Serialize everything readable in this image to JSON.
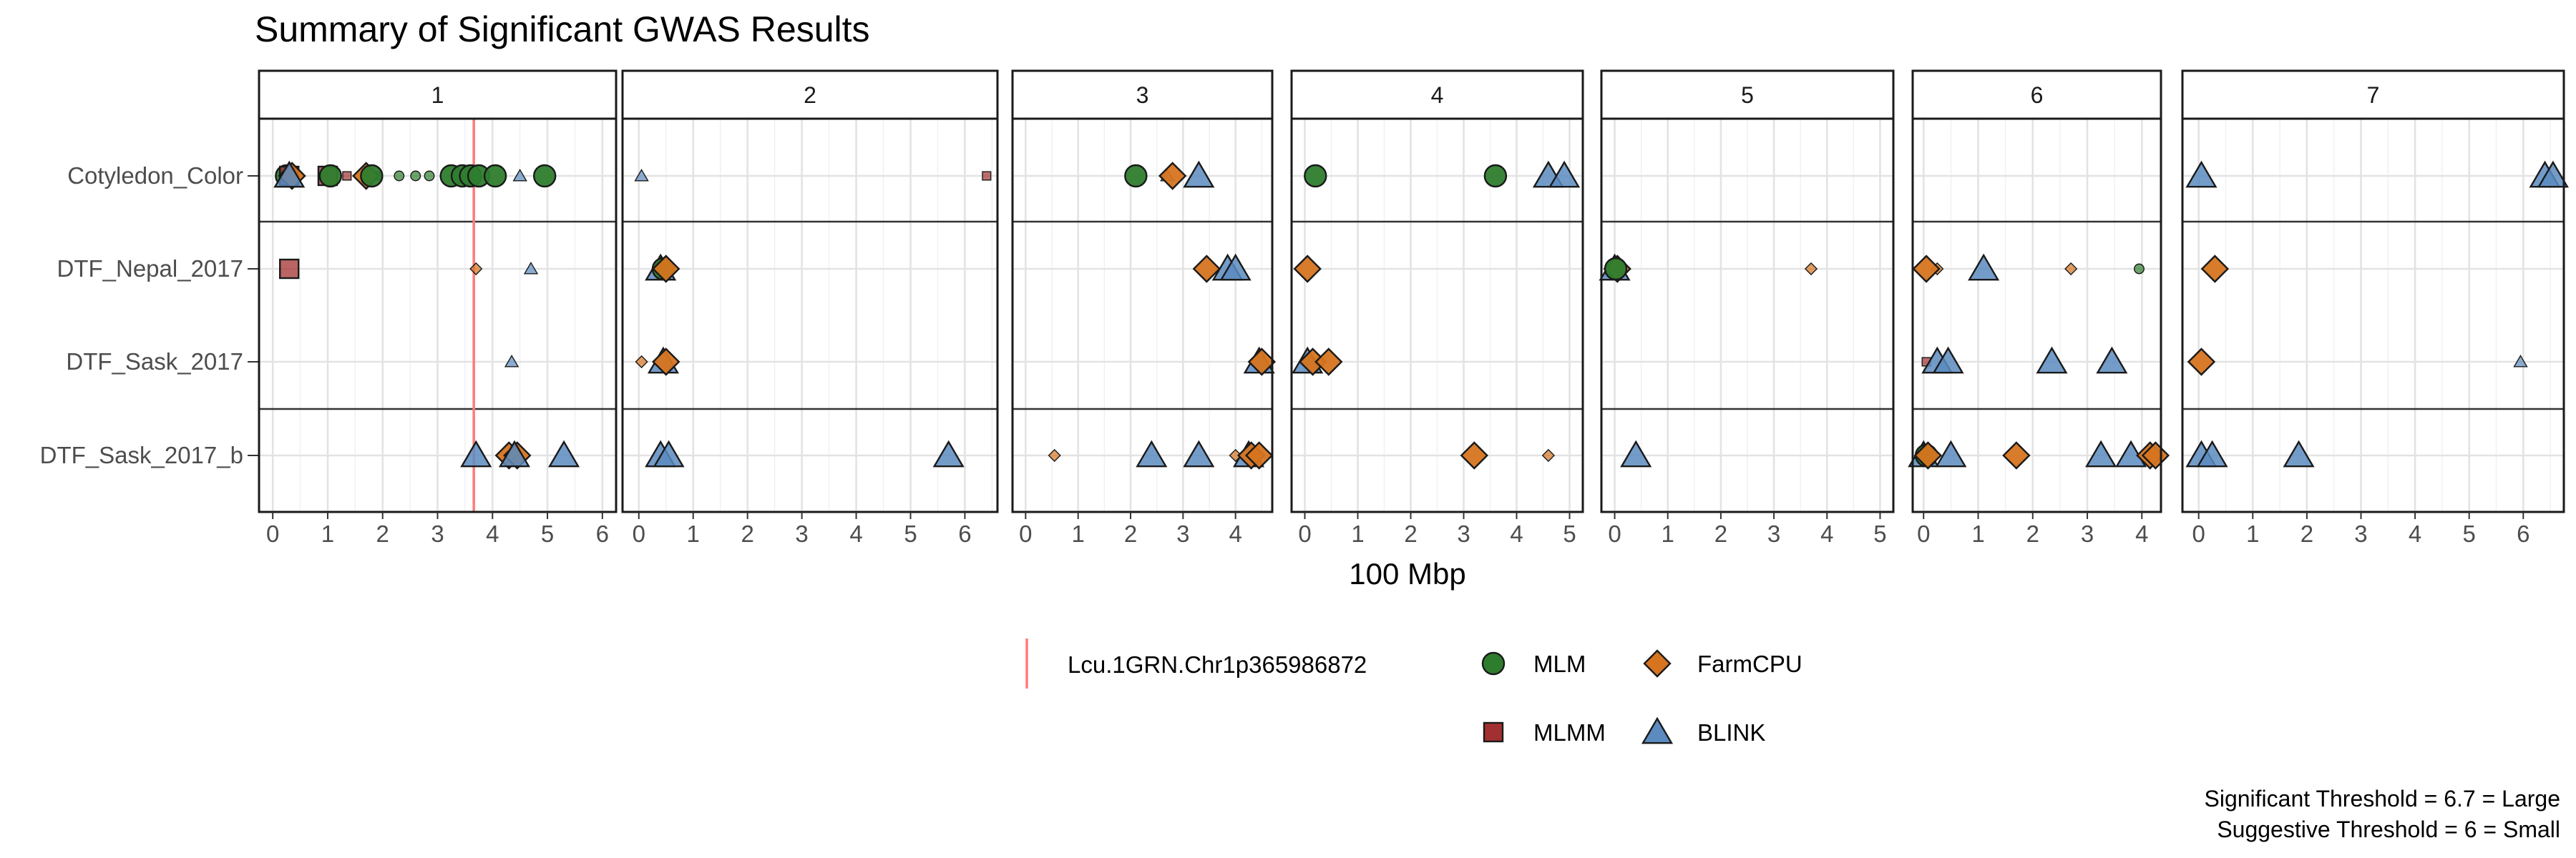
{
  "chart_data": {
    "type": "scatter",
    "title": "Summary of Significant GWAS Results",
    "xlabel": "100 Mbp",
    "ylabel": "",
    "rows": [
      "Cotyledon_Color",
      "DTF_Nepal_2017",
      "DTF_Sask_2017",
      "DTF_Sask_2017_b"
    ],
    "panels": [
      {
        "label": "1",
        "xlim": [
          -0.25,
          6.25
        ],
        "ticks": [
          "0",
          "1",
          "2",
          "3",
          "4",
          "5",
          "6"
        ],
        "points": [
          {
            "x": 0.25,
            "row": 0,
            "model": "MLM",
            "size": "large"
          },
          {
            "x": 0.3,
            "row": 0,
            "model": "MLMM",
            "size": "large"
          },
          {
            "x": 0.35,
            "row": 0,
            "model": "FarmCPU",
            "size": "large"
          },
          {
            "x": 0.3,
            "row": 0,
            "model": "BLINK",
            "size": "large"
          },
          {
            "x": 1.0,
            "row": 0,
            "model": "MLMM",
            "size": "large"
          },
          {
            "x": 1.05,
            "row": 0,
            "model": "MLM",
            "size": "large"
          },
          {
            "x": 1.35,
            "row": 0,
            "model": "MLMM",
            "size": "small"
          },
          {
            "x": 1.7,
            "row": 0,
            "model": "FarmCPU",
            "size": "large"
          },
          {
            "x": 1.8,
            "row": 0,
            "model": "MLM",
            "size": "large"
          },
          {
            "x": 1.9,
            "row": 0,
            "model": "MLMM",
            "size": "small"
          },
          {
            "x": 2.3,
            "row": 0,
            "model": "MLM",
            "size": "small"
          },
          {
            "x": 2.6,
            "row": 0,
            "model": "MLM",
            "size": "small"
          },
          {
            "x": 2.85,
            "row": 0,
            "model": "MLM",
            "size": "small"
          },
          {
            "x": 3.25,
            "row": 0,
            "model": "MLM",
            "size": "large"
          },
          {
            "x": 3.45,
            "row": 0,
            "model": "MLM",
            "size": "large"
          },
          {
            "x": 3.6,
            "row": 0,
            "model": "MLM",
            "size": "large"
          },
          {
            "x": 3.75,
            "row": 0,
            "model": "MLM",
            "size": "large"
          },
          {
            "x": 4.05,
            "row": 0,
            "model": "MLM",
            "size": "large"
          },
          {
            "x": 4.5,
            "row": 0,
            "model": "BLINK",
            "size": "small"
          },
          {
            "x": 4.95,
            "row": 0,
            "model": "MLM",
            "size": "large"
          },
          {
            "x": 0.3,
            "row": 1,
            "model": "MLMM",
            "size": "large"
          },
          {
            "x": 3.7,
            "row": 1,
            "model": "FarmCPU",
            "size": "small"
          },
          {
            "x": 4.7,
            "row": 1,
            "model": "BLINK",
            "size": "small"
          },
          {
            "x": 4.35,
            "row": 2,
            "model": "BLINK",
            "size": "small"
          },
          {
            "x": 3.7,
            "row": 3,
            "model": "BLINK",
            "size": "large"
          },
          {
            "x": 4.3,
            "row": 3,
            "model": "FarmCPU",
            "size": "large"
          },
          {
            "x": 4.45,
            "row": 3,
            "model": "FarmCPU",
            "size": "large"
          },
          {
            "x": 4.4,
            "row": 3,
            "model": "BLINK",
            "size": "large"
          },
          {
            "x": 5.3,
            "row": 3,
            "model": "BLINK",
            "size": "large"
          }
        ]
      },
      {
        "label": "2",
        "xlim": [
          -0.3,
          6.6
        ],
        "ticks": [
          "0",
          "1",
          "2",
          "3",
          "4",
          "5",
          "6"
        ],
        "points": [
          {
            "x": 0.05,
            "row": 0,
            "model": "BLINK",
            "size": "small"
          },
          {
            "x": 6.4,
            "row": 0,
            "model": "MLMM",
            "size": "small"
          },
          {
            "x": 0.4,
            "row": 1,
            "model": "BLINK",
            "size": "large"
          },
          {
            "x": 0.45,
            "row": 1,
            "model": "MLM",
            "size": "large"
          },
          {
            "x": 0.5,
            "row": 1,
            "model": "FarmCPU",
            "size": "large"
          },
          {
            "x": 0.05,
            "row": 2,
            "model": "FarmCPU",
            "size": "small"
          },
          {
            "x": 0.45,
            "row": 2,
            "model": "BLINK",
            "size": "large"
          },
          {
            "x": 0.5,
            "row": 2,
            "model": "FarmCPU",
            "size": "large"
          },
          {
            "x": 0.4,
            "row": 3,
            "model": "BLINK",
            "size": "large"
          },
          {
            "x": 0.55,
            "row": 3,
            "model": "BLINK",
            "size": "large"
          },
          {
            "x": 5.7,
            "row": 3,
            "model": "BLINK",
            "size": "large"
          }
        ]
      },
      {
        "label": "3",
        "xlim": [
          -0.25,
          4.7
        ],
        "ticks": [
          "0",
          "1",
          "2",
          "3",
          "4"
        ],
        "points": [
          {
            "x": 2.1,
            "row": 0,
            "model": "MLM",
            "size": "large"
          },
          {
            "x": 2.7,
            "row": 0,
            "model": "BLINK",
            "size": "small"
          },
          {
            "x": 2.8,
            "row": 0,
            "model": "FarmCPU",
            "size": "large"
          },
          {
            "x": 3.3,
            "row": 0,
            "model": "BLINK",
            "size": "large"
          },
          {
            "x": 3.45,
            "row": 1,
            "model": "FarmCPU",
            "size": "large"
          },
          {
            "x": 3.85,
            "row": 1,
            "model": "BLINK",
            "size": "large"
          },
          {
            "x": 4.0,
            "row": 1,
            "model": "BLINK",
            "size": "large"
          },
          {
            "x": 4.45,
            "row": 2,
            "model": "BLINK",
            "size": "large"
          },
          {
            "x": 4.5,
            "row": 2,
            "model": "FarmCPU",
            "size": "large"
          },
          {
            "x": 0.55,
            "row": 3,
            "model": "FarmCPU",
            "size": "small"
          },
          {
            "x": 2.4,
            "row": 3,
            "model": "BLINK",
            "size": "large"
          },
          {
            "x": 3.3,
            "row": 3,
            "model": "BLINK",
            "size": "large"
          },
          {
            "x": 4.0,
            "row": 3,
            "model": "FarmCPU",
            "size": "small"
          },
          {
            "x": 4.25,
            "row": 3,
            "model": "BLINK",
            "size": "large"
          },
          {
            "x": 4.3,
            "row": 3,
            "model": "FarmCPU",
            "size": "large"
          },
          {
            "x": 4.45,
            "row": 3,
            "model": "FarmCPU",
            "size": "large"
          }
        ]
      },
      {
        "label": "4",
        "xlim": [
          -0.25,
          5.25
        ],
        "ticks": [
          "0",
          "1",
          "2",
          "3",
          "4",
          "5"
        ],
        "points": [
          {
            "x": 0.2,
            "row": 0,
            "model": "MLM",
            "size": "large"
          },
          {
            "x": 3.6,
            "row": 0,
            "model": "MLM",
            "size": "large"
          },
          {
            "x": 4.6,
            "row": 0,
            "model": "BLINK",
            "size": "large"
          },
          {
            "x": 4.9,
            "row": 0,
            "model": "BLINK",
            "size": "large"
          },
          {
            "x": 0.05,
            "row": 1,
            "model": "FarmCPU",
            "size": "large"
          },
          {
            "x": 0.05,
            "row": 2,
            "model": "BLINK",
            "size": "large"
          },
          {
            "x": 0.15,
            "row": 2,
            "model": "FarmCPU",
            "size": "large"
          },
          {
            "x": 0.45,
            "row": 2,
            "model": "FarmCPU",
            "size": "large"
          },
          {
            "x": 3.2,
            "row": 3,
            "model": "FarmCPU",
            "size": "large"
          },
          {
            "x": 4.6,
            "row": 3,
            "model": "FarmCPU",
            "size": "small"
          }
        ]
      },
      {
        "label": "5",
        "xlim": [
          -0.25,
          5.25
        ],
        "ticks": [
          "0",
          "1",
          "2",
          "3",
          "4",
          "5"
        ],
        "points": [
          {
            "x": 0.0,
            "row": 1,
            "model": "BLINK",
            "size": "large"
          },
          {
            "x": 0.05,
            "row": 1,
            "model": "FarmCPU",
            "size": "large"
          },
          {
            "x": 0.02,
            "row": 1,
            "model": "MLM",
            "size": "large"
          },
          {
            "x": 3.7,
            "row": 1,
            "model": "FarmCPU",
            "size": "small"
          },
          {
            "x": 0.4,
            "row": 3,
            "model": "BLINK",
            "size": "large"
          }
        ]
      },
      {
        "label": "6",
        "xlim": [
          -0.2,
          4.35
        ],
        "ticks": [
          "0",
          "1",
          "2",
          "3",
          "4"
        ],
        "points": [
          {
            "x": 0.05,
            "row": 1,
            "model": "FarmCPU",
            "size": "large"
          },
          {
            "x": 0.25,
            "row": 1,
            "model": "FarmCPU",
            "size": "small"
          },
          {
            "x": 1.1,
            "row": 1,
            "model": "BLINK",
            "size": "large"
          },
          {
            "x": 2.7,
            "row": 1,
            "model": "FarmCPU",
            "size": "small"
          },
          {
            "x": 3.95,
            "row": 1,
            "model": "MLM",
            "size": "small"
          },
          {
            "x": 0.05,
            "row": 2,
            "model": "MLMM",
            "size": "small"
          },
          {
            "x": 0.25,
            "row": 2,
            "model": "BLINK",
            "size": "large"
          },
          {
            "x": 0.45,
            "row": 2,
            "model": "BLINK",
            "size": "large"
          },
          {
            "x": 2.35,
            "row": 2,
            "model": "BLINK",
            "size": "large"
          },
          {
            "x": 3.45,
            "row": 2,
            "model": "BLINK",
            "size": "large"
          },
          {
            "x": 0.0,
            "row": 3,
            "model": "BLINK",
            "size": "large"
          },
          {
            "x": 0.05,
            "row": 3,
            "model": "MLM",
            "size": "large"
          },
          {
            "x": 0.08,
            "row": 3,
            "model": "FarmCPU",
            "size": "large"
          },
          {
            "x": 0.5,
            "row": 3,
            "model": "BLINK",
            "size": "large"
          },
          {
            "x": 1.7,
            "row": 3,
            "model": "FarmCPU",
            "size": "large"
          },
          {
            "x": 3.25,
            "row": 3,
            "model": "BLINK",
            "size": "large"
          },
          {
            "x": 3.8,
            "row": 3,
            "model": "BLINK",
            "size": "large"
          },
          {
            "x": 4.15,
            "row": 3,
            "model": "FarmCPU",
            "size": "large"
          },
          {
            "x": 4.25,
            "row": 3,
            "model": "FarmCPU",
            "size": "large"
          }
        ]
      },
      {
        "label": "7",
        "xlim": [
          -0.3,
          6.75
        ],
        "ticks": [
          "0",
          "1",
          "2",
          "3",
          "4",
          "5",
          "6"
        ],
        "points": [
          {
            "x": 0.05,
            "row": 0,
            "model": "BLINK",
            "size": "large"
          },
          {
            "x": 6.4,
            "row": 0,
            "model": "BLINK",
            "size": "large"
          },
          {
            "x": 6.55,
            "row": 0,
            "model": "BLINK",
            "size": "large"
          },
          {
            "x": 0.3,
            "row": 1,
            "model": "FarmCPU",
            "size": "large"
          },
          {
            "x": 0.05,
            "row": 2,
            "model": "FarmCPU",
            "size": "large"
          },
          {
            "x": 5.95,
            "row": 2,
            "model": "BLINK",
            "size": "small"
          },
          {
            "x": 0.05,
            "row": 3,
            "model": "BLINK",
            "size": "large"
          },
          {
            "x": 0.25,
            "row": 3,
            "model": "BLINK",
            "size": "large"
          },
          {
            "x": 1.85,
            "row": 3,
            "model": "BLINK",
            "size": "large"
          }
        ]
      }
    ],
    "vline": {
      "panel": 0,
      "x": 3.66,
      "label": "Lcu.1GRN.Chr1p365986872",
      "color": "#ff7b7b"
    },
    "legend": [
      {
        "model": "MLM",
        "label": "MLM",
        "shape": "circle",
        "color": "#2e7d2e"
      },
      {
        "model": "FarmCPU",
        "label": "FarmCPU",
        "shape": "diamond",
        "color": "#d6741f"
      },
      {
        "model": "MLMM",
        "label": "MLMM",
        "shape": "square",
        "color": "#a33030"
      },
      {
        "model": "BLINK",
        "label": "BLINK",
        "shape": "triangle",
        "color": "#5b8bbf"
      }
    ],
    "notes": [
      "Significant Threshold = 6.7 = Large",
      "Suggestive Threshold = 6 = Small"
    ],
    "grid": true,
    "legend_position": "bottom"
  }
}
